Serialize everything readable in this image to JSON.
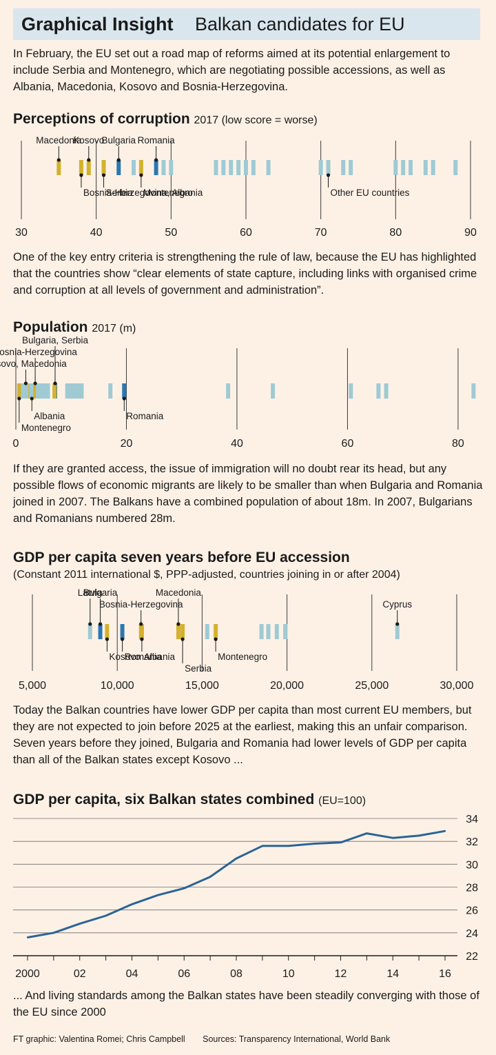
{
  "header": {
    "title_bold": "Graphical Insight",
    "title_rest": "Balkan candidates for EU",
    "intro": "In February, the EU set out a road map of reforms aimed at its potential enlargement to include Serbia and Montenegro, which are negotiating possible accessions, as well as Albania, Macedonia, Kosovo and Bosnia-Herzegovina."
  },
  "colors": {
    "balkan": "#d3b12e",
    "highlight": "#2a78b3",
    "eu": "#9fcad4",
    "line": "#2a6496",
    "background": "#fdf1e6",
    "title_bg": "#d9e6ee"
  },
  "sections": {
    "corruption": {
      "title": "Perceptions of corruption",
      "subtitle": "2017 (low score = worse)",
      "text": "One of the key entry criteria is strengthening the rule of law, because the EU has highlighted that the countries show “clear elements of state capture, including links with organised crime and corruption at all levels of government and administration”."
    },
    "population": {
      "title": "Population",
      "subtitle": "2017 (m)",
      "text": "If they are granted access, the issue of immigration will no doubt rear its head, but any possible flows of economic migrants are likely to be smaller than when Bulgaria and Romania joined in 2007. The Balkans have a combined population of about 18m. In 2007, Bulgarians and Romanians numbered 28m."
    },
    "gdp": {
      "title": "GDP per capita seven years before EU accession",
      "subtitle": "(Constant 2011 international $, PPP-adjusted, countries joining in or after 2004)",
      "text": "Today the Balkan countries have lower GDP per capita than most current EU members, but they are not expected to join before 2025 at the earliest, making this an unfair comparison. Seven years before they joined, Bulgaria and Romania had lower levels of GDP per capita than all of the Balkan states except Kosovo ..."
    },
    "line": {
      "title": "GDP per capita, six Balkan states combined",
      "subtitle": "(EU=100)",
      "text": "... And living standards among the Balkan states have been steadily converging with those of the EU since 2000"
    }
  },
  "footer": {
    "credit": "FT graphic: Valentina Romei; Chris Campbell",
    "sources": "Sources: Transparency International, World Bank"
  },
  "chart_data": [
    {
      "type": "strip",
      "title": "Perceptions of corruption",
      "subtitle": "2017 (low score = worse)",
      "xlim": [
        30,
        90
      ],
      "xticks": [
        30,
        40,
        50,
        60,
        70,
        80,
        90
      ],
      "points": [
        {
          "value": 35,
          "group": "balkan",
          "label": "Macedonia",
          "label_pos": "above"
        },
        {
          "value": 38,
          "group": "balkan",
          "label": "Bosnia-Herzegovina, Albania",
          "label_pos": "below"
        },
        {
          "value": 39,
          "group": "balkan",
          "label": "Kosovo",
          "label_pos": "above"
        },
        {
          "value": 41,
          "group": "balkan",
          "label": "Serbia",
          "label_pos": "below"
        },
        {
          "value": 43,
          "group": "highlight",
          "label": "Bulgaria",
          "label_pos": "above"
        },
        {
          "value": 45,
          "group": "eu"
        },
        {
          "value": 46,
          "group": "balkan",
          "label": "Montenegro",
          "label_pos": "below"
        },
        {
          "value": 48,
          "group": "highlight",
          "label": "Romania",
          "label_pos": "above"
        },
        {
          "value": 49,
          "group": "eu"
        },
        {
          "value": 50,
          "group": "eu"
        },
        {
          "value": 56,
          "group": "eu"
        },
        {
          "value": 57,
          "group": "eu"
        },
        {
          "value": 58,
          "group": "eu"
        },
        {
          "value": 59,
          "group": "eu"
        },
        {
          "value": 60,
          "group": "eu"
        },
        {
          "value": 61,
          "group": "eu"
        },
        {
          "value": 63,
          "group": "eu"
        },
        {
          "value": 70,
          "group": "eu"
        },
        {
          "value": 71,
          "group": "eu",
          "label": "Other EU countries",
          "label_pos": "below"
        },
        {
          "value": 73,
          "group": "eu"
        },
        {
          "value": 74,
          "group": "eu"
        },
        {
          "value": 80,
          "group": "eu"
        },
        {
          "value": 81,
          "group": "eu"
        },
        {
          "value": 82,
          "group": "eu"
        },
        {
          "value": 84,
          "group": "eu"
        },
        {
          "value": 85,
          "group": "eu"
        },
        {
          "value": 88,
          "group": "eu"
        }
      ]
    },
    {
      "type": "strip",
      "title": "Population",
      "subtitle": "2017 (m)",
      "xlim": [
        0,
        83
      ],
      "xticks": [
        0,
        20,
        40,
        60,
        80
      ],
      "points": [
        {
          "value": 1.8,
          "group": "balkan",
          "label": "Kosovo, Macedonia",
          "label_pos": "above"
        },
        {
          "value": 2.1,
          "group": "balkan"
        },
        {
          "value": 2.9,
          "group": "balkan",
          "label": "Albania",
          "label_pos": "below"
        },
        {
          "value": 0.6,
          "group": "balkan",
          "label": "Montenegro",
          "label_pos": "below"
        },
        {
          "value": 3.5,
          "group": "balkan",
          "label": "Bosnia-Herzegovina",
          "label_pos": "above"
        },
        {
          "value": 7.1,
          "group": "highlight",
          "label": "Bulgaria, Serbia",
          "label_pos": "above"
        },
        {
          "value": 7.0,
          "group": "balkan"
        },
        {
          "value": 19.6,
          "group": "highlight",
          "label": "Romania",
          "label_pos": "below"
        },
        {
          "value": 1.3,
          "group": "eu"
        },
        {
          "value": 1.9,
          "group": "eu"
        },
        {
          "value": 2.8,
          "group": "eu"
        },
        {
          "value": 4.0,
          "group": "eu"
        },
        {
          "value": 4.3,
          "group": "eu"
        },
        {
          "value": 4.8,
          "group": "eu"
        },
        {
          "value": 5.5,
          "group": "eu"
        },
        {
          "value": 5.8,
          "group": "eu"
        },
        {
          "value": 9.3,
          "group": "eu"
        },
        {
          "value": 9.8,
          "group": "eu"
        },
        {
          "value": 10.3,
          "group": "eu"
        },
        {
          "value": 10.6,
          "group": "eu"
        },
        {
          "value": 11.3,
          "group": "eu"
        },
        {
          "value": 11.9,
          "group": "eu"
        },
        {
          "value": 17.1,
          "group": "eu"
        },
        {
          "value": 38.4,
          "group": "eu"
        },
        {
          "value": 46.5,
          "group": "eu"
        },
        {
          "value": 60.6,
          "group": "eu"
        },
        {
          "value": 65.6,
          "group": "eu"
        },
        {
          "value": 67.0,
          "group": "eu"
        },
        {
          "value": 82.8,
          "group": "eu"
        }
      ]
    },
    {
      "type": "strip",
      "title": "GDP per capita seven years before EU accession",
      "subtitle": "(Constant 2011 international $, PPP-adjusted, countries joining in or after 2004)",
      "xlim": [
        5000,
        30000
      ],
      "xticks": [
        5000,
        10000,
        15000,
        20000,
        25000,
        30000
      ],
      "xtick_labels": [
        "5,000",
        "10,000",
        "15,000",
        "20,000",
        "25,000",
        "30,000"
      ],
      "points": [
        {
          "value": 8400,
          "group": "eu",
          "label": "Latvia",
          "label_pos": "above"
        },
        {
          "value": 9000,
          "group": "highlight",
          "label": "Bulgaria",
          "label_pos": "above"
        },
        {
          "value": 9400,
          "group": "balkan",
          "label": "Kosovo",
          "label_pos": "below"
        },
        {
          "value": 10300,
          "group": "highlight",
          "label": "Romania",
          "label_pos": "below"
        },
        {
          "value": 11400,
          "group": "balkan",
          "label": "Bosnia-Herzegovina",
          "label_pos": "above"
        },
        {
          "value": 11450,
          "group": "balkan",
          "label": "Albania",
          "label_pos": "below"
        },
        {
          "value": 13600,
          "group": "balkan",
          "label": "Macedonia",
          "label_pos": "above"
        },
        {
          "value": 13850,
          "group": "balkan",
          "label": "Serbia",
          "label_pos": "below"
        },
        {
          "value": 15300,
          "group": "eu"
        },
        {
          "value": 15800,
          "group": "balkan",
          "label": "Montenegro",
          "label_pos": "below"
        },
        {
          "value": 18500,
          "group": "eu"
        },
        {
          "value": 18900,
          "group": "eu"
        },
        {
          "value": 19400,
          "group": "eu"
        },
        {
          "value": 19900,
          "group": "eu"
        },
        {
          "value": 26500,
          "group": "eu",
          "label": "Cyprus",
          "label_pos": "above"
        }
      ]
    },
    {
      "type": "line",
      "title": "GDP per capita, six Balkan states combined",
      "subtitle": "(EU=100)",
      "x": [
        2000,
        2001,
        2002,
        2003,
        2004,
        2005,
        2006,
        2007,
        2008,
        2009,
        2010,
        2011,
        2012,
        2013,
        2014,
        2015,
        2016
      ],
      "xtick_labels": [
        "2000",
        "02",
        "04",
        "06",
        "08",
        "10",
        "12",
        "14",
        "16"
      ],
      "series": [
        {
          "values": [
            23.6,
            24.0,
            24.8,
            25.5,
            26.5,
            27.3,
            27.9,
            28.9,
            30.5,
            31.6,
            31.6,
            31.8,
            31.9,
            32.7,
            32.3,
            32.5,
            32.9
          ]
        }
      ],
      "ylim": [
        22,
        34
      ],
      "yticks": [
        22,
        24,
        26,
        28,
        30,
        32,
        34
      ],
      "grid": true,
      "y_axis_side": "right"
    }
  ]
}
